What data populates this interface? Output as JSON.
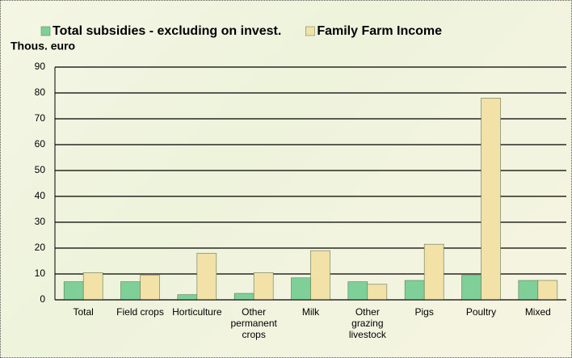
{
  "chart_data": {
    "type": "bar",
    "y_label": "Thous. euro",
    "categories": [
      "Total",
      "Field crops",
      "Horticulture",
      "Other permanent crops",
      "Milk",
      "Other grazing livestock",
      "Pigs",
      "Poultry",
      "Mixed"
    ],
    "series": [
      {
        "name": "Total subsidies - excluding on invest.",
        "color": "#7fcf98",
        "values": [
          7,
          7,
          2,
          2.5,
          8.5,
          7,
          7.5,
          9.5,
          7.5
        ]
      },
      {
        "name": "Family Farm Income",
        "color": "#f2e2a8",
        "values": [
          10.5,
          9.5,
          18,
          10.5,
          19,
          6,
          21.5,
          78,
          7.5
        ]
      }
    ],
    "ylim": [
      0,
      90
    ],
    "yticks": [
      0,
      10,
      20,
      30,
      40,
      50,
      60,
      70,
      80,
      90
    ],
    "grid": true
  }
}
